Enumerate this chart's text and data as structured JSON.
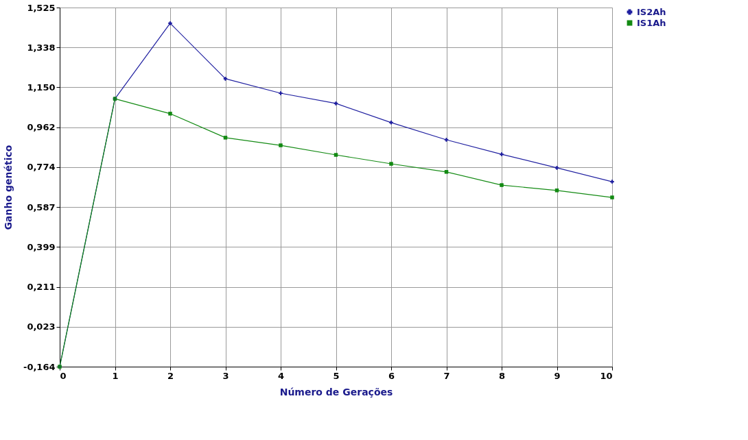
{
  "chart_data": {
    "type": "line",
    "xlabel": "Número de Gerações",
    "ylabel": "Ganho genético",
    "x": [
      0,
      1,
      2,
      3,
      4,
      5,
      6,
      7,
      8,
      9,
      10
    ],
    "series": [
      {
        "name": "IS2Ah",
        "color": "#1f1fa0",
        "marker": "cross",
        "values": [
          -0.164,
          1.096,
          1.451,
          1.19,
          1.122,
          1.074,
          0.984,
          0.903,
          0.835,
          0.771,
          0.706
        ]
      },
      {
        "name": "IS1Ah",
        "color": "#138a13",
        "marker": "square",
        "values": [
          -0.164,
          1.096,
          1.026,
          0.913,
          0.877,
          0.832,
          0.79,
          0.752,
          0.69,
          0.665,
          0.632
        ]
      }
    ],
    "xlim": [
      0,
      10
    ],
    "xticks": [
      0,
      1,
      2,
      3,
      4,
      5,
      6,
      7,
      8,
      9,
      10
    ],
    "ylim": [
      -0.164,
      1.525
    ],
    "yticks": [
      {
        "value": -0.164,
        "label": "-0,164"
      },
      {
        "value": 0.023,
        "label": "0,023"
      },
      {
        "value": 0.211,
        "label": "0,211"
      },
      {
        "value": 0.399,
        "label": "0,399"
      },
      {
        "value": 0.587,
        "label": "0,587"
      },
      {
        "value": 0.774,
        "label": "0,774"
      },
      {
        "value": 0.962,
        "label": "0,962"
      },
      {
        "value": 1.15,
        "label": "1,150"
      },
      {
        "value": 1.338,
        "label": "1,338"
      },
      {
        "value": 1.525,
        "label": "1,525"
      }
    ],
    "grid": true,
    "legend": "top right",
    "line_style": "solid"
  }
}
